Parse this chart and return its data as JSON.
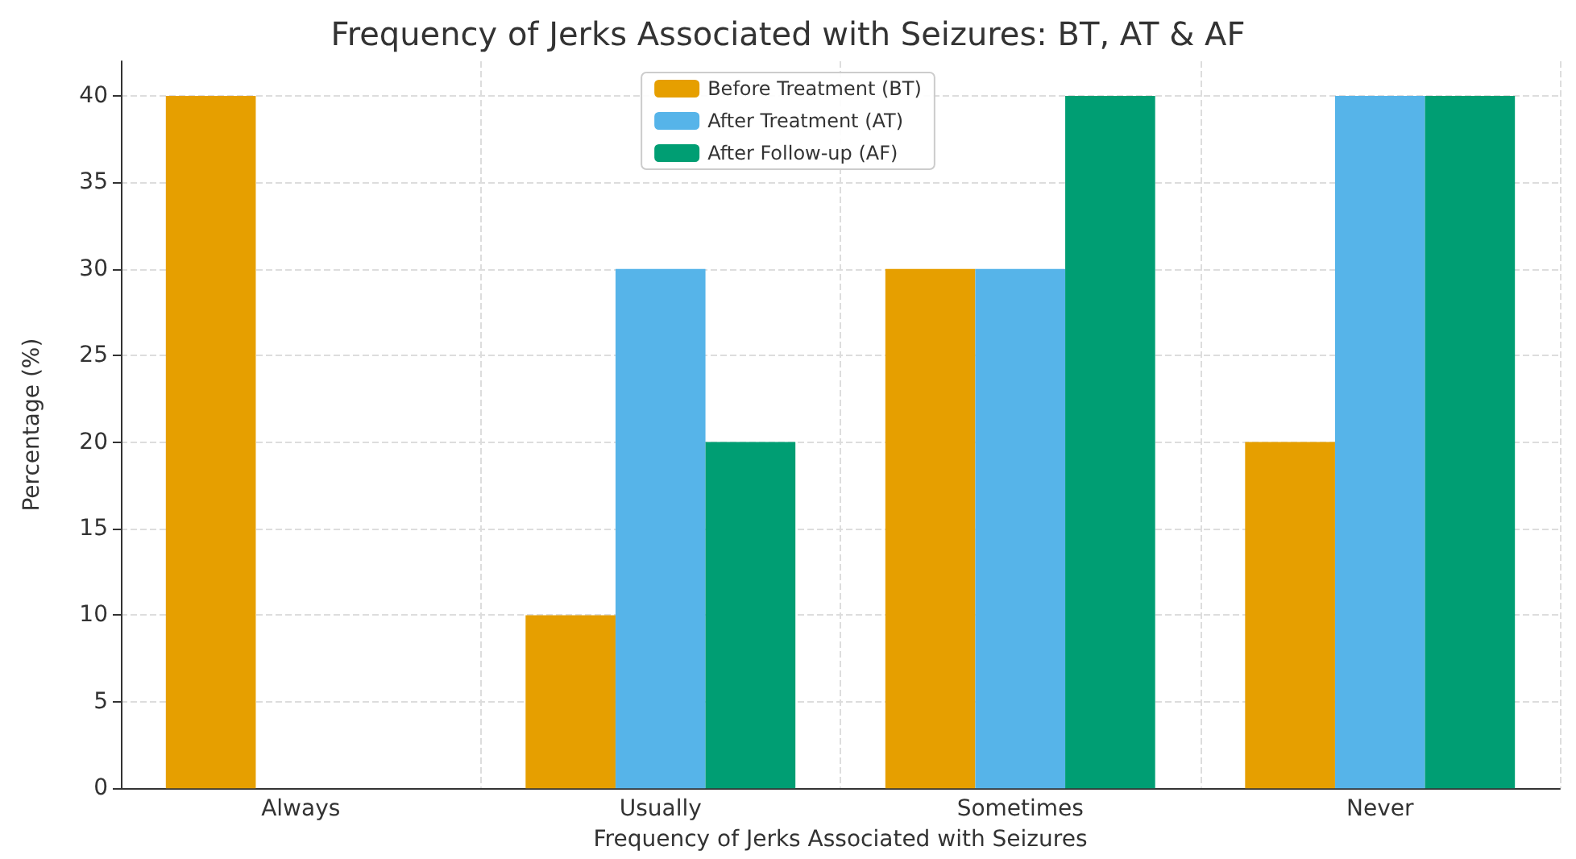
{
  "chart_data": {
    "type": "bar",
    "title": "Frequency of Jerks Associated with Seizures: BT, AT & AF",
    "xlabel": "Frequency of Jerks Associated with Seizures",
    "ylabel": "Percentage (%)",
    "categories": [
      "Always",
      "Usually",
      "Sometimes",
      "Never"
    ],
    "series": [
      {
        "name": "Before Treatment (BT)",
        "color": "#e69f00",
        "values": [
          40,
          10,
          30,
          20
        ]
      },
      {
        "name": "After Treatment (AT)",
        "color": "#56b4e9",
        "values": [
          0,
          30,
          30,
          40
        ]
      },
      {
        "name": "After Follow-up (AF)",
        "color": "#009e73",
        "values": [
          0,
          20,
          40,
          40
        ]
      }
    ],
    "ylim": [
      0,
      42
    ],
    "yticks": [
      0,
      5,
      10,
      15,
      20,
      25,
      30,
      35,
      40
    ],
    "grid": true,
    "legend": "top"
  }
}
